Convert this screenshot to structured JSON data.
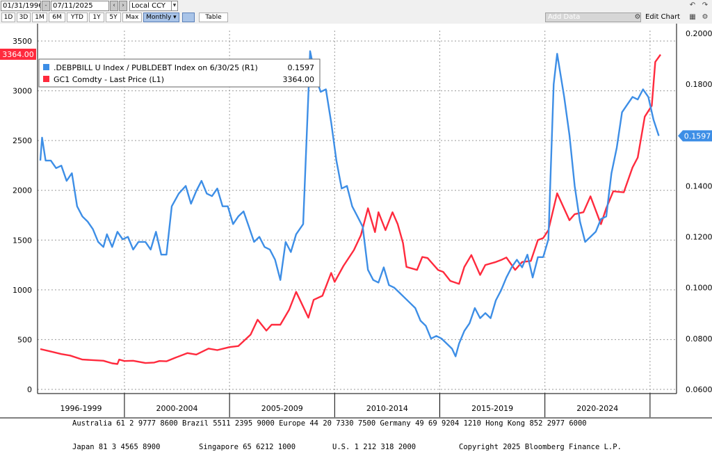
{
  "toolbar": {
    "start_date": "01/31/1996",
    "end_date": "07/11/2025",
    "currency": "Local CCY",
    "ranges": [
      "1D",
      "3D",
      "1M",
      "6M",
      "YTD",
      "1Y",
      "5Y",
      "Max"
    ],
    "frequency": "Monthly ▾",
    "table_label": "Table",
    "add_data_placeholder": "Add Data",
    "edit_chart_label": "Edit Chart",
    "icons": [
      "undo-icon",
      "redo-icon",
      "gear-icon",
      "settings-icon",
      "chart-type-icon"
    ]
  },
  "chart_data": {
    "type": "line",
    "title": "",
    "legend": {
      "placement": "top-left",
      "entries": [
        {
          "label": ".DEBPBILL U Index / PUBLDEBT Index on 6/30/25 (R1)",
          "value": "0.1597",
          "color": "#3d8ee6"
        },
        {
          "label": "GC1 Comdty - Last Price (L1)",
          "value": "3364.00",
          "color": "#ff2a3d"
        }
      ]
    },
    "left_axis": {
      "ticks": [
        "0",
        "500",
        "1000",
        "1500",
        "2000",
        "2500",
        "3000",
        "3500"
      ],
      "range": [
        0,
        3500
      ]
    },
    "right_axis": {
      "ticks": [
        "0.0600",
        "0.0800",
        "0.1000",
        "0.1200",
        "0.1400",
        "0.1600",
        "0.1800",
        "0.2000"
      ],
      "range": [
        0.06,
        0.2
      ]
    },
    "x_axis": {
      "labels": [
        "1996-1999",
        "2000-2004",
        "2005-2009",
        "2010-2014",
        "2015-2019",
        "2020-2024"
      ],
      "range": [
        "1996-01",
        "2025-07"
      ]
    },
    "last_labels": {
      "left": "3364.00",
      "right": "0.1597"
    },
    "grid": true,
    "series": [
      {
        "name": "GC1 Comdty - Last Price (L1)",
        "axis": "left",
        "color": "#ff2a3d",
        "points": [
          [
            "1996-01",
            405
          ],
          [
            "1996-06",
            385
          ],
          [
            "1997-01",
            355
          ],
          [
            "1997-06",
            340
          ],
          [
            "1998-01",
            300
          ],
          [
            "1998-06",
            295
          ],
          [
            "1999-01",
            288
          ],
          [
            "1999-06",
            262
          ],
          [
            "1999-09",
            255
          ],
          [
            "1999-10",
            300
          ],
          [
            "2000-01",
            285
          ],
          [
            "2000-06",
            288
          ],
          [
            "2001-01",
            265
          ],
          [
            "2001-06",
            270
          ],
          [
            "2001-09",
            285
          ],
          [
            "2002-01",
            282
          ],
          [
            "2002-06",
            318
          ],
          [
            "2003-01",
            365
          ],
          [
            "2003-06",
            350
          ],
          [
            "2004-01",
            410
          ],
          [
            "2004-06",
            395
          ],
          [
            "2005-01",
            425
          ],
          [
            "2005-06",
            435
          ],
          [
            "2006-01",
            550
          ],
          [
            "2006-05",
            700
          ],
          [
            "2006-10",
            590
          ],
          [
            "2007-01",
            650
          ],
          [
            "2007-06",
            650
          ],
          [
            "2007-11",
            800
          ],
          [
            "2008-03",
            980
          ],
          [
            "2008-10",
            720
          ],
          [
            "2009-01",
            900
          ],
          [
            "2009-06",
            940
          ],
          [
            "2009-11",
            1170
          ],
          [
            "2010-01",
            1080
          ],
          [
            "2010-06",
            1240
          ],
          [
            "2010-12",
            1400
          ],
          [
            "2011-04",
            1550
          ],
          [
            "2011-08",
            1820
          ],
          [
            "2011-12",
            1580
          ],
          [
            "2012-02",
            1780
          ],
          [
            "2012-06",
            1600
          ],
          [
            "2012-10",
            1780
          ],
          [
            "2013-01",
            1660
          ],
          [
            "2013-04",
            1470
          ],
          [
            "2013-06",
            1230
          ],
          [
            "2013-12",
            1200
          ],
          [
            "2014-03",
            1330
          ],
          [
            "2014-06",
            1320
          ],
          [
            "2014-12",
            1200
          ],
          [
            "2015-03",
            1180
          ],
          [
            "2015-07",
            1090
          ],
          [
            "2015-12",
            1060
          ],
          [
            "2016-03",
            1230
          ],
          [
            "2016-07",
            1350
          ],
          [
            "2016-12",
            1150
          ],
          [
            "2017-03",
            1250
          ],
          [
            "2017-09",
            1280
          ],
          [
            "2017-12",
            1300
          ],
          [
            "2018-03",
            1325
          ],
          [
            "2018-08",
            1200
          ],
          [
            "2018-12",
            1280
          ],
          [
            "2019-05",
            1290
          ],
          [
            "2019-09",
            1500
          ],
          [
            "2019-12",
            1520
          ],
          [
            "2020-03",
            1600
          ],
          [
            "2020-08",
            1970
          ],
          [
            "2021-03",
            1700
          ],
          [
            "2021-06",
            1760
          ],
          [
            "2021-11",
            1780
          ],
          [
            "2022-03",
            1940
          ],
          [
            "2022-09",
            1660
          ],
          [
            "2022-12",
            1820
          ],
          [
            "2023-04",
            1990
          ],
          [
            "2023-10",
            1980
          ],
          [
            "2024-03",
            2230
          ],
          [
            "2024-06",
            2330
          ],
          [
            "2024-10",
            2740
          ],
          [
            "2025-02",
            2850
          ],
          [
            "2025-04",
            3290
          ],
          [
            "2025-07",
            3364
          ]
        ]
      },
      {
        "name": ".DEBPBILL U Index / PUBLDEBT Index on 6/30/25 (R1)",
        "axis": "right",
        "color": "#3d8ee6",
        "points": [
          [
            "1996-01",
            0.15
          ],
          [
            "1996-02",
            0.159
          ],
          [
            "1996-04",
            0.15
          ],
          [
            "1996-07",
            0.15
          ],
          [
            "1996-10",
            0.147
          ],
          [
            "1997-01",
            0.148
          ],
          [
            "1997-04",
            0.142
          ],
          [
            "1997-07",
            0.145
          ],
          [
            "1997-10",
            0.132
          ],
          [
            "1998-01",
            0.128
          ],
          [
            "1998-04",
            0.126
          ],
          [
            "1998-07",
            0.123
          ],
          [
            "1998-10",
            0.118
          ],
          [
            "1999-01",
            0.116
          ],
          [
            "1999-03",
            0.121
          ],
          [
            "1999-06",
            0.116
          ],
          [
            "1999-09",
            0.122
          ],
          [
            "1999-12",
            0.119
          ],
          [
            "2000-03",
            0.12
          ],
          [
            "2000-06",
            0.115
          ],
          [
            "2000-09",
            0.118
          ],
          [
            "2001-01",
            0.118
          ],
          [
            "2001-04",
            0.115
          ],
          [
            "2001-07",
            0.122
          ],
          [
            "2001-10",
            0.113
          ],
          [
            "2002-01",
            0.113
          ],
          [
            "2002-04",
            0.132
          ],
          [
            "2002-08",
            0.137
          ],
          [
            "2002-12",
            0.14
          ],
          [
            "2003-03",
            0.133
          ],
          [
            "2003-06",
            0.138
          ],
          [
            "2003-09",
            0.142
          ],
          [
            "2003-12",
            0.137
          ],
          [
            "2004-03",
            0.136
          ],
          [
            "2004-06",
            0.139
          ],
          [
            "2004-09",
            0.132
          ],
          [
            "2004-12",
            0.132
          ],
          [
            "2005-03",
            0.125
          ],
          [
            "2005-06",
            0.128
          ],
          [
            "2005-09",
            0.13
          ],
          [
            "2005-12",
            0.124
          ],
          [
            "2006-03",
            0.118
          ],
          [
            "2006-06",
            0.12
          ],
          [
            "2006-09",
            0.116
          ],
          [
            "2006-12",
            0.115
          ],
          [
            "2007-03",
            0.111
          ],
          [
            "2007-06",
            0.103
          ],
          [
            "2007-09",
            0.118
          ],
          [
            "2007-12",
            0.114
          ],
          [
            "2008-03",
            0.121
          ],
          [
            "2008-07",
            0.125
          ],
          [
            "2008-11",
            0.193
          ],
          [
            "2009-02",
            0.183
          ],
          [
            "2009-05",
            0.177
          ],
          [
            "2009-08",
            0.178
          ],
          [
            "2009-11",
            0.165
          ],
          [
            "2010-02",
            0.15
          ],
          [
            "2010-05",
            0.139
          ],
          [
            "2010-08",
            0.14
          ],
          [
            "2010-11",
            0.132
          ],
          [
            "2011-02",
            0.128
          ],
          [
            "2011-05",
            0.124
          ],
          [
            "2011-08",
            0.107
          ],
          [
            "2011-11",
            0.103
          ],
          [
            "2012-02",
            0.102
          ],
          [
            "2012-05",
            0.108
          ],
          [
            "2012-08",
            0.101
          ],
          [
            "2012-11",
            0.1
          ],
          [
            "2013-02",
            0.098
          ],
          [
            "2013-05",
            0.096
          ],
          [
            "2013-08",
            0.094
          ],
          [
            "2013-11",
            0.092
          ],
          [
            "2014-02",
            0.087
          ],
          [
            "2014-05",
            0.085
          ],
          [
            "2014-08",
            0.08
          ],
          [
            "2014-11",
            0.081
          ],
          [
            "2015-02",
            0.08
          ],
          [
            "2015-05",
            0.078
          ],
          [
            "2015-08",
            0.076
          ],
          [
            "2015-10",
            0.073
          ],
          [
            "2015-12",
            0.078
          ],
          [
            "2016-03",
            0.083
          ],
          [
            "2016-06",
            0.086
          ],
          [
            "2016-09",
            0.092
          ],
          [
            "2016-12",
            0.088
          ],
          [
            "2017-03",
            0.09
          ],
          [
            "2017-06",
            0.088
          ],
          [
            "2017-09",
            0.095
          ],
          [
            "2017-12",
            0.099
          ],
          [
            "2018-03",
            0.104
          ],
          [
            "2018-06",
            0.108
          ],
          [
            "2018-09",
            0.111
          ],
          [
            "2018-12",
            0.108
          ],
          [
            "2019-03",
            0.113
          ],
          [
            "2019-06",
            0.104
          ],
          [
            "2019-09",
            0.112
          ],
          [
            "2019-12",
            0.112
          ],
          [
            "2020-03",
            0.119
          ],
          [
            "2020-06",
            0.18
          ],
          [
            "2020-08",
            0.192
          ],
          [
            "2020-12",
            0.175
          ],
          [
            "2021-03",
            0.16
          ],
          [
            "2021-06",
            0.14
          ],
          [
            "2021-09",
            0.126
          ],
          [
            "2021-12",
            0.118
          ],
          [
            "2022-03",
            0.12
          ],
          [
            "2022-06",
            0.122
          ],
          [
            "2022-09",
            0.127
          ],
          [
            "2022-12",
            0.128
          ],
          [
            "2023-03",
            0.145
          ],
          [
            "2023-06",
            0.155
          ],
          [
            "2023-09",
            0.169
          ],
          [
            "2023-12",
            0.172
          ],
          [
            "2024-03",
            0.175
          ],
          [
            "2024-06",
            0.174
          ],
          [
            "2024-09",
            0.178
          ],
          [
            "2024-12",
            0.175
          ],
          [
            "2025-03",
            0.166
          ],
          [
            "2025-06",
            0.1597
          ]
        ]
      }
    ]
  },
  "footer": {
    "line1": "Australia 61 2 9777 8600 Brazil 5511 2395 9000 Europe 44 20 7330 7500 Germany 49 69 9204 1210 Hong Kong 852 2977 6000",
    "line2": [
      "Japan 81 3 4565 8900",
      "Singapore 65 6212 1000",
      "U.S. 1 212 318 2000",
      "Copyright 2025 Bloomberg Finance L.P."
    ]
  }
}
